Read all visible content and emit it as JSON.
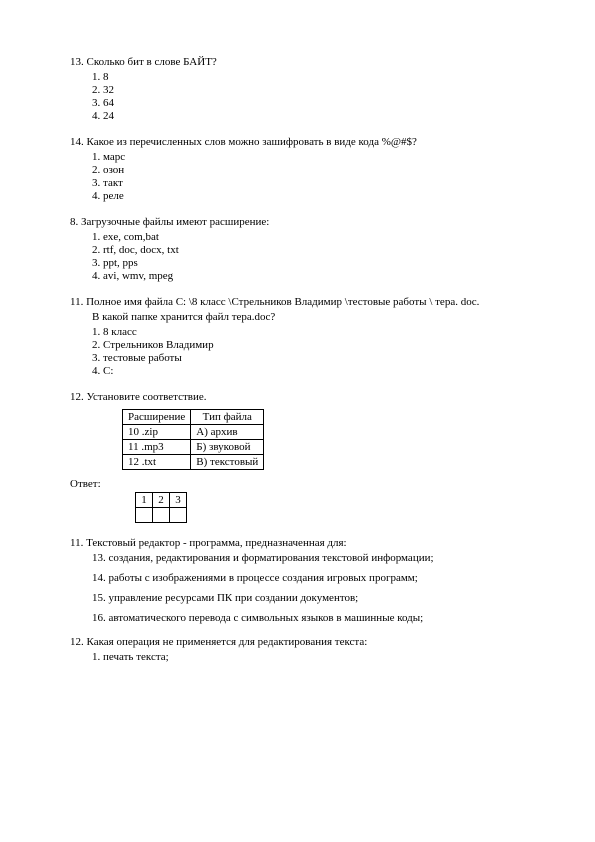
{
  "q13": {
    "head": "13. Сколько бит в слове БАЙТ?",
    "o1": "1.  8",
    "o2": "2. 32",
    "o3": "3. 64",
    "o4": "4. 24"
  },
  "q14": {
    "head": "14. Какое из перечисленных слов можно зашифровать в виде кода %@#$?",
    "o1": "1. марс",
    "o2": "2. озон",
    "o3": "3. такт",
    "o4": "4. реле"
  },
  "q8": {
    "head": "8.  Загрузочные файлы имеют расширение:",
    "o1": "1. exe, com,bat",
    "o2": "2. rtf, doc, docx, txt",
    "o3": "3. ppt, pps",
    "o4": "4. avi, wmv, mpeg"
  },
  "q11": {
    "head": "11. Полное имя файла C: \\8 класс \\Стрельников Владимир \\тестовые работы \\ тера. doc.",
    "sub": "В какой папке хранится файл тера.doc?",
    "o1": "1. 8 класс",
    "o2": "2. Стрельников Владимир",
    "o3": "3. тестовые работы",
    "o4": "4. C:"
  },
  "q12": {
    "head": "12.       Установите соответствие.",
    "th1": "Расширение",
    "th2": "Тип файла",
    "r1c1": "10  .zip",
    "r1c2": "А) архив",
    "r2c1": "11  .mp3",
    "r2c2": "Б) звуковой",
    "r3c1": "12  .txt",
    "r3c2": "В) текстовый",
    "answer": "Ответ:",
    "a1": "1",
    "a2": "2",
    "a3": "3"
  },
  "q11b": {
    "head": "11. Текстовый редактор - программа, предназначенная для:",
    "o1": "13. создания, редактирования и форматирования текстовой информации;",
    "o2": "14. работы с изображениями в процессе создания игровых программ;",
    "o3": "15. управление ресурсами ПК при создании документов;",
    "o4": "16. автоматического перевода с символьных языков в машинные коды;"
  },
  "q12b": {
    "head": "12. Какая операция не применяется для редактирования текста:",
    "o1": "1.   печать текста;"
  }
}
